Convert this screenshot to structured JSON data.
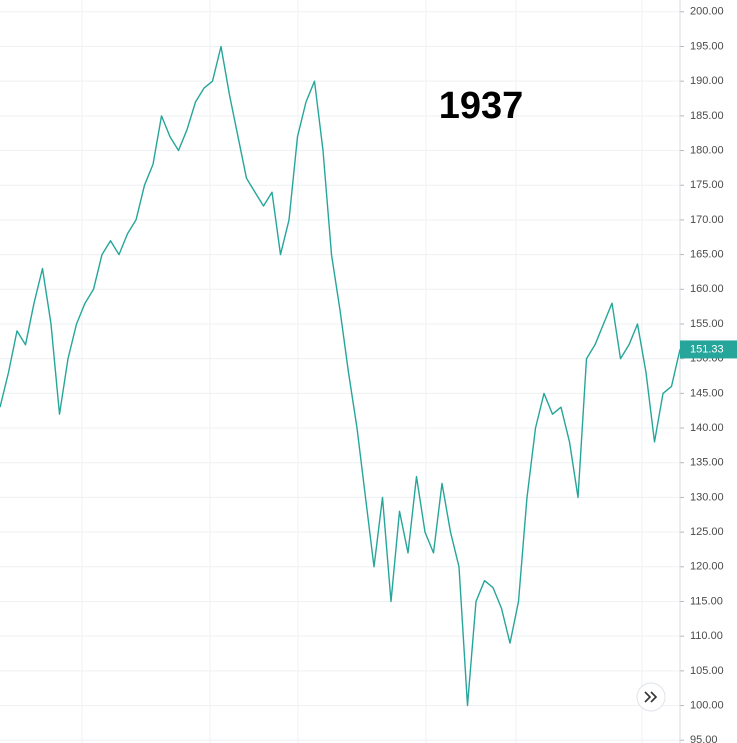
{
  "chart_data": {
    "type": "line",
    "annotation": "1937",
    "color": "#26a69a",
    "grid": true,
    "ylim": [
      94.6,
      201.7
    ],
    "yticks": [
      {
        "value": 95,
        "label": "95.00"
      },
      {
        "value": 100,
        "label": "100.00"
      },
      {
        "value": 105,
        "label": "105.00"
      },
      {
        "value": 110,
        "label": "110.00"
      },
      {
        "value": 115,
        "label": "115.00"
      },
      {
        "value": 120,
        "label": "120.00"
      },
      {
        "value": 125,
        "label": "125.00"
      },
      {
        "value": 130,
        "label": "130.00"
      },
      {
        "value": 135,
        "label": "135.00"
      },
      {
        "value": 140,
        "label": "140.00"
      },
      {
        "value": 145,
        "label": "145.00"
      },
      {
        "value": 150,
        "label": "150.00"
      },
      {
        "value": 155,
        "label": "155.00"
      },
      {
        "value": 160,
        "label": "160.00"
      },
      {
        "value": 165,
        "label": "165.00"
      },
      {
        "value": 170,
        "label": "170.00"
      },
      {
        "value": 175,
        "label": "175.00"
      },
      {
        "value": 180,
        "label": "180.00"
      },
      {
        "value": 185,
        "label": "185.00"
      },
      {
        "value": 190,
        "label": "190.00"
      },
      {
        "value": 195,
        "label": "195.00"
      },
      {
        "value": 200,
        "label": "200.00"
      }
    ],
    "last_price": 151.33,
    "values": [
      143,
      148,
      154,
      152,
      158,
      163,
      155,
      142,
      150,
      155,
      158,
      160,
      165,
      167,
      165,
      168,
      170,
      175,
      178,
      185,
      182,
      180,
      183,
      187,
      189,
      190,
      195,
      188,
      182,
      176,
      174,
      172,
      174,
      165,
      170,
      182,
      187,
      190,
      180,
      165,
      157,
      148,
      140,
      130,
      120,
      130,
      115,
      128,
      122,
      133,
      125,
      122,
      132,
      125,
      120,
      100,
      115,
      118,
      117,
      114,
      109,
      115,
      130,
      140,
      145,
      142,
      143,
      138,
      130,
      150,
      152,
      155,
      158,
      150,
      152,
      155,
      148,
      138,
      145,
      146,
      151.33
    ]
  }
}
